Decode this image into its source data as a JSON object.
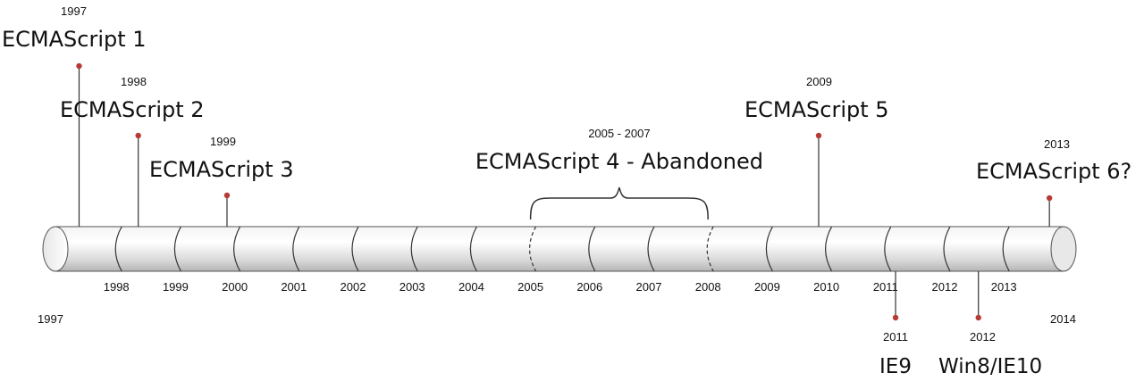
{
  "timeline": {
    "start_label": "1997",
    "end_label": "2014",
    "years": [
      "1998",
      "1999",
      "2000",
      "2001",
      "2002",
      "2003",
      "2004",
      "2005",
      "2006",
      "2007",
      "2008",
      "2009",
      "2010",
      "2011",
      "2012",
      "2013"
    ],
    "events_above": [
      {
        "id": "es1",
        "year": 1997.4,
        "date_label": "1997",
        "title": "ECMAScript 1"
      },
      {
        "id": "es2",
        "year": 1998.4,
        "date_label": "1998",
        "title": "ECMAScript 2"
      },
      {
        "id": "es3",
        "year": 1999.9,
        "date_label": "1999",
        "title": "ECMAScript 3"
      },
      {
        "id": "es5",
        "year": 2009.9,
        "date_label": "2009",
        "title": "ECMAScript 5"
      },
      {
        "id": "es6",
        "year": 2013.8,
        "date_label": "2013",
        "title": "ECMAScript 6?"
      }
    ],
    "events_below": [
      {
        "id": "ie9",
        "year": 2011.2,
        "date_label": "2011",
        "title": "IE9"
      },
      {
        "id": "win8",
        "year": 2012.6,
        "date_label": "2012",
        "title": "Win8/IE10"
      }
    ],
    "span_event": {
      "id": "es4",
      "start": 2005,
      "end": 2008,
      "date_label": "2005 - 2007",
      "title": "ECMAScript 4 - Abandoned"
    },
    "colors": {
      "dot": "#b83a34",
      "line": "#333333"
    }
  }
}
